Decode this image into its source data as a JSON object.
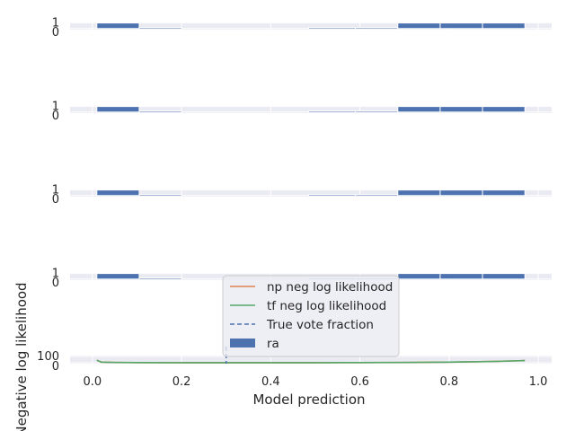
{
  "chart_data": {
    "type": "bar",
    "style": {
      "panel_bg": "#EAEAF2",
      "grid": "#ffffff",
      "bar_color": "#4C72B0",
      "np_color": "#DD8452",
      "tf_color": "#55A868",
      "vote_color": "#4C72B0"
    },
    "xlim": [
      -0.05,
      1.03
    ],
    "panels": [
      {
        "bins": [
          0.01,
          0.105,
          0.2,
          0.295,
          0.39,
          0.485,
          0.59,
          0.685,
          0.78,
          0.875,
          0.97
        ],
        "values": [
          1,
          0.2,
          0,
          0,
          0,
          0.2,
          0.2,
          1,
          1,
          1
        ],
        "ylim": [
          -0.2,
          1.1
        ],
        "yticks": [
          "1",
          "0"
        ],
        "show_x": false
      },
      {
        "bins": [
          0.01,
          0.105,
          0.2,
          0.295,
          0.39,
          0.485,
          0.59,
          0.685,
          0.78,
          0.875,
          0.97
        ],
        "values": [
          1,
          0.2,
          0,
          0,
          0,
          0.2,
          0.2,
          1,
          1,
          1
        ],
        "ylim": [
          -0.2,
          1.1
        ],
        "yticks": [
          "1",
          "0"
        ],
        "show_x": false
      },
      {
        "bins": [
          0.01,
          0.105,
          0.2,
          0.295,
          0.39,
          0.485,
          0.59,
          0.685,
          0.78,
          0.875,
          0.97
        ],
        "values": [
          1,
          0.2,
          0,
          0,
          0,
          0.2,
          0.2,
          1,
          1,
          1
        ],
        "ylim": [
          -0.2,
          1.1
        ],
        "yticks": [
          "1",
          "0"
        ],
        "show_x": false
      },
      {
        "bins": [
          0.01,
          0.105,
          0.2,
          0.295,
          0.39,
          0.485,
          0.59,
          0.685,
          0.78,
          0.875,
          0.97
        ],
        "values": [
          1,
          0.2,
          0,
          0,
          0,
          0.2,
          0.2,
          1,
          1,
          1
        ],
        "ylim": [
          -0.2,
          1.1
        ],
        "yticks": [
          "1",
          "0"
        ],
        "show_x": false
      },
      {
        "ylim": [
          -15,
          115
        ],
        "yticks": [
          "100",
          "0"
        ],
        "show_x": true,
        "xticks": [
          "0.0",
          "0.2",
          "0.4",
          "0.6",
          "0.8",
          "1.0"
        ],
        "xlabel": "Model prediction",
        "ylabel": "Negative log likelihood",
        "vote_fraction": 0.3,
        "nll_x": [
          0.01,
          0.02,
          0.05,
          0.1,
          0.2,
          0.3,
          0.4,
          0.5,
          0.6,
          0.7,
          0.8,
          0.9,
          0.95,
          0.97
        ],
        "nll_y": [
          40,
          10,
          5,
          2,
          0,
          0,
          0,
          1,
          2,
          5,
          10,
          20,
          30,
          35
        ]
      }
    ],
    "legend": [
      {
        "label": "np neg log likelihood",
        "kind": "line",
        "color": "#DD8452"
      },
      {
        "label": "tf neg log likelihood",
        "kind": "line",
        "color": "#55A868"
      },
      {
        "label": "True vote fraction",
        "kind": "dashed",
        "color": "#4C72B0"
      },
      {
        "label": "ra",
        "kind": "patch",
        "color": "#4C72B0"
      }
    ]
  }
}
